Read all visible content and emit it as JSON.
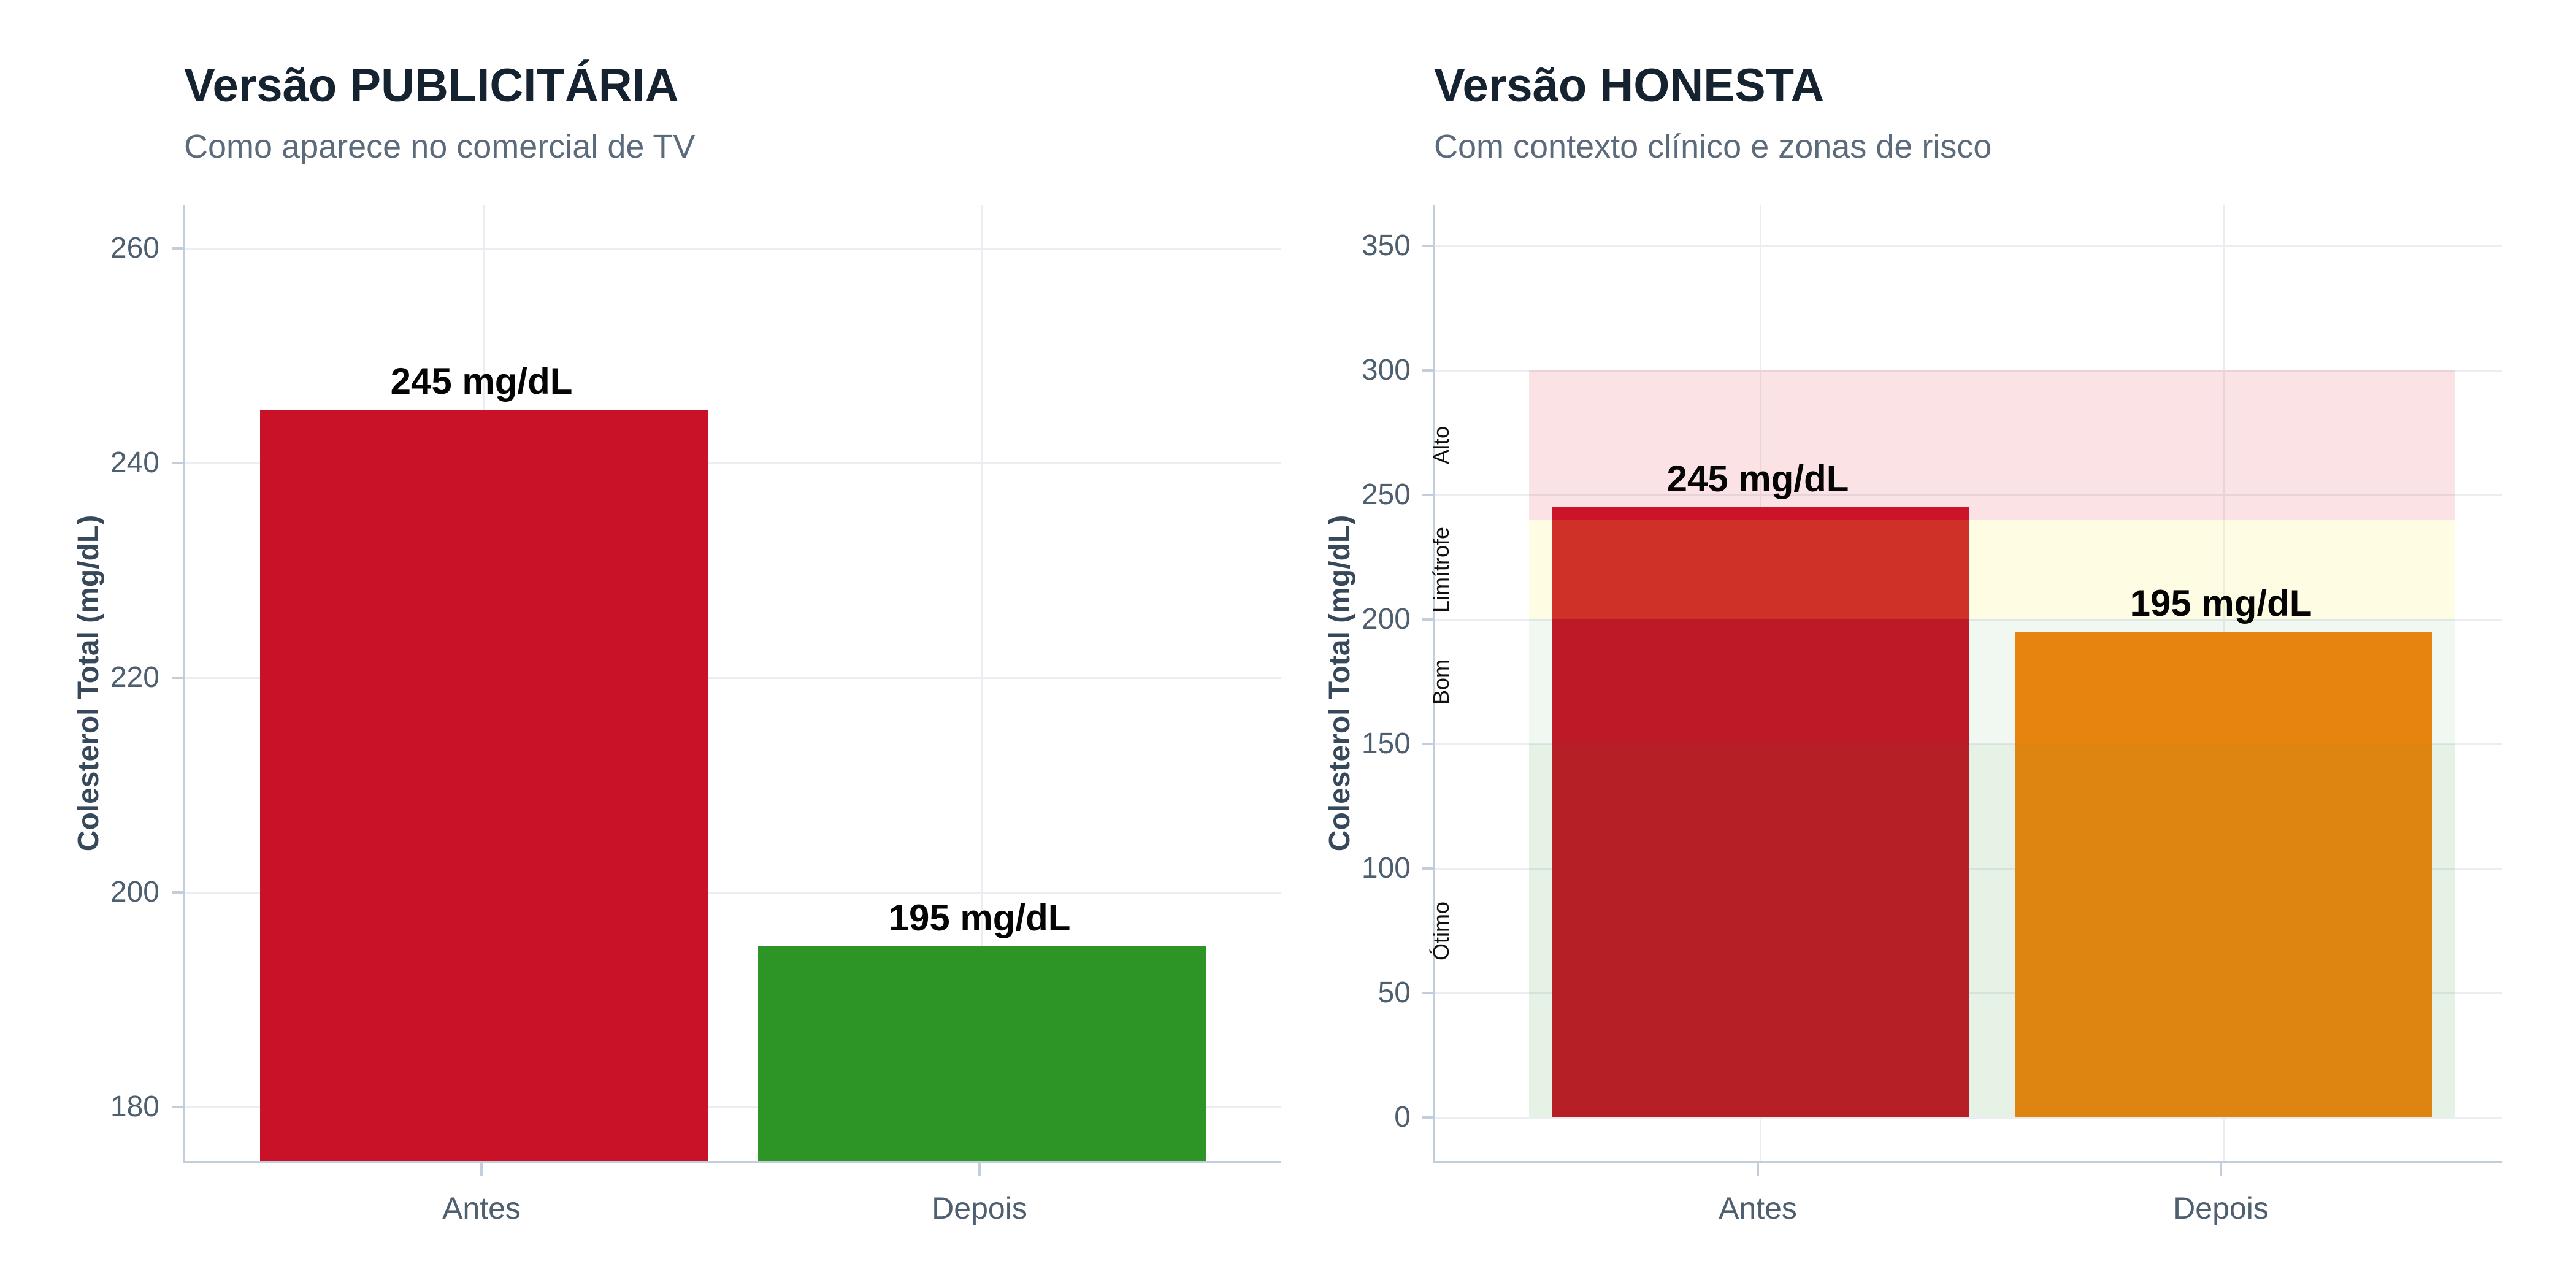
{
  "chart_data": [
    {
      "type": "bar",
      "title": "Versão PUBLICITÁRIA",
      "subtitle": "Como aparece no comercial de TV",
      "ylabel": "Colesterol Total (mg/dL)",
      "categories": [
        "Antes",
        "Depois"
      ],
      "values": [
        245,
        195
      ],
      "bar_labels": [
        "245 mg/dL",
        "195 mg/dL"
      ],
      "bar_colors": [
        "#C91227",
        "#2D9426"
      ],
      "ylim": [
        175,
        264
      ],
      "yticks": [
        180,
        200,
        220,
        240,
        260
      ],
      "baseline": null,
      "grid": true,
      "legend": "none",
      "axis_note": "truncated y-axis starting near 175 mg/dL"
    },
    {
      "type": "bar",
      "title": "Versão HONESTA",
      "subtitle": "Com contexto clínico e zonas de risco",
      "ylabel": "Colesterol Total (mg/dL)",
      "categories": [
        "Antes",
        "Depois"
      ],
      "values": [
        245,
        195
      ],
      "bar_labels": [
        "245 mg/dL",
        "195 mg/dL"
      ],
      "bar_colors": [
        "#C91227",
        "#F5830D"
      ],
      "ylim": [
        -17.5,
        366.3
      ],
      "yticks": [
        0,
        50,
        100,
        150,
        200,
        250,
        300,
        350
      ],
      "baseline": 0,
      "grid": true,
      "legend": "none",
      "zones": [
        {
          "label": "Ótimo",
          "from": 0,
          "to": 150,
          "color": "rgba(40,140,40,0.115)"
        },
        {
          "label": "Bom",
          "from": 150,
          "to": 200,
          "color": "rgba(40,140,40,0.065)"
        },
        {
          "label": "Limítrofe",
          "from": 200,
          "to": 240,
          "color": "rgba(250,240,60,0.14)"
        },
        {
          "label": "Alto",
          "from": 240,
          "to": 300,
          "color": "rgba(220,40,60,0.135)"
        }
      ]
    }
  ],
  "colors": {
    "title": "#15222F",
    "subtitle": "#5B6B7C",
    "axis_line": "#C3CEDB",
    "gridline": "#EAEEF3",
    "tick_text": "#4E5F70"
  }
}
